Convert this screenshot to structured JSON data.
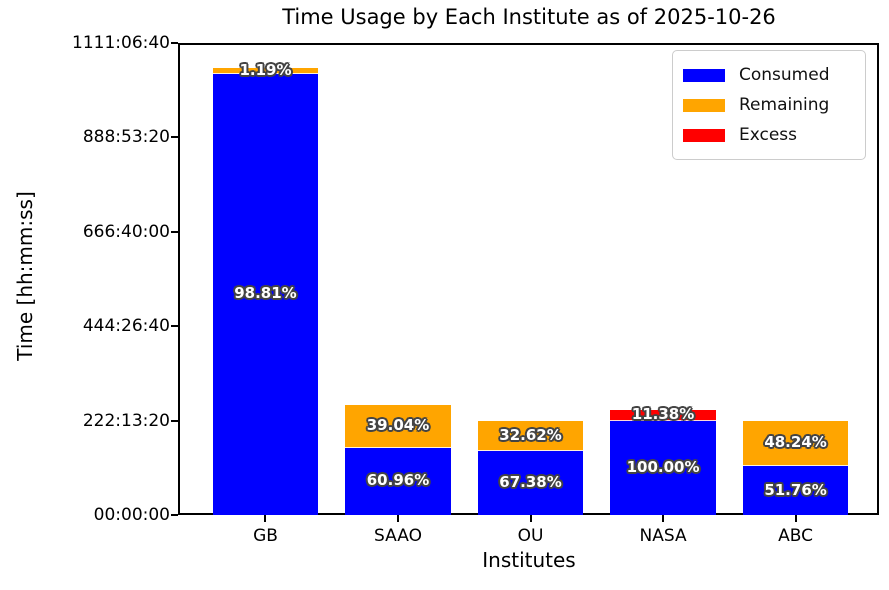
{
  "title": "Time Usage by Each Institute as of 2025-10-26",
  "axes": {
    "xlabel": "Institutes",
    "ylabel": "Time [hh:mm:ss]"
  },
  "legend": {
    "position": "upper right",
    "items": [
      {
        "label": "Consumed",
        "color": "#0000ff"
      },
      {
        "label": "Remaining",
        "color": "#ffa500"
      },
      {
        "label": "Excess",
        "color": "#ff0000"
      }
    ]
  },
  "chart_data": {
    "type": "bar",
    "stacked": true,
    "title": "Time Usage by Each Institute as of 2025-10-26",
    "xlabel": "Institutes",
    "ylabel": "Time [hh:mm:ss]",
    "categories": [
      "GB",
      "SAAO",
      "OU",
      "NASA",
      "ABC"
    ],
    "unit": "seconds (displayed as hh:mm:ss)",
    "ylim": [
      0,
      4000000
    ],
    "grid": false,
    "legend_position": "upper right",
    "yticks": [
      {
        "value": 0,
        "label": "00:00:00"
      },
      {
        "value": 800000,
        "label": "222:13:20"
      },
      {
        "value": 1600000,
        "label": "444:26:40"
      },
      {
        "value": 2400000,
        "label": "666:40:00"
      },
      {
        "value": 3200000,
        "label": "888:53:20"
      },
      {
        "value": 4000000,
        "label": "1111:06:40"
      }
    ],
    "series": [
      {
        "name": "Consumed",
        "color": "#0000ff",
        "values": [
          3740000,
          570000,
          539040,
          800000,
          414080
        ],
        "percent_labels": [
          "98.81%",
          "60.96%",
          "67.38%",
          "100.00%",
          "51.76%"
        ]
      },
      {
        "name": "Remaining",
        "color": "#ffa500",
        "values": [
          45000,
          365000,
          260960,
          0,
          385920
        ],
        "percent_labels": [
          "1.19%",
          "39.04%",
          "32.62%",
          "",
          "48.24%"
        ]
      },
      {
        "name": "Excess",
        "color": "#ff0000",
        "values": [
          0,
          0,
          0,
          91040,
          0
        ],
        "percent_labels": [
          "",
          "",
          "",
          "11.38%",
          ""
        ]
      }
    ]
  }
}
